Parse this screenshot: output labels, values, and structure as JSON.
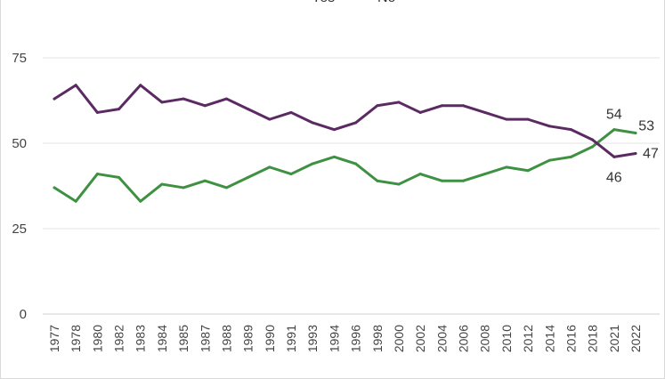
{
  "chart_data": {
    "type": "line",
    "categories": [
      "1977",
      "1978",
      "1980",
      "1982",
      "1983",
      "1984",
      "1985",
      "1987",
      "1988",
      "1989",
      "1990",
      "1991",
      "1993",
      "1994",
      "1996",
      "1998",
      "2000",
      "2002",
      "2004",
      "2006",
      "2008",
      "2010",
      "2012",
      "2014",
      "2016",
      "2018",
      "2021",
      "2022"
    ],
    "series": [
      {
        "name": "Yes",
        "color": "#3f9142",
        "values": [
          37,
          33,
          41,
          40,
          33,
          38,
          37,
          39,
          37,
          40,
          43,
          41,
          44,
          46,
          44,
          39,
          38,
          41,
          39,
          39,
          41,
          43,
          42,
          45,
          46,
          49,
          54,
          53
        ],
        "end_labels": [
          {
            "index": 26,
            "text": "54"
          },
          {
            "index": 27,
            "text": "53"
          }
        ]
      },
      {
        "name": "No",
        "color": "#5c2a63",
        "values": [
          63,
          67,
          59,
          60,
          67,
          62,
          63,
          61,
          63,
          60,
          57,
          59,
          56,
          54,
          56,
          61,
          62,
          59,
          61,
          61,
          59,
          57,
          57,
          55,
          54,
          51,
          46,
          47
        ],
        "end_labels": [
          {
            "index": 26,
            "text": "46"
          },
          {
            "index": 27,
            "text": "47"
          }
        ]
      }
    ],
    "yticks": [
      "0",
      "25",
      "50",
      "75"
    ],
    "ylim": [
      0,
      75
    ],
    "grid": true,
    "legend_position": "top"
  }
}
